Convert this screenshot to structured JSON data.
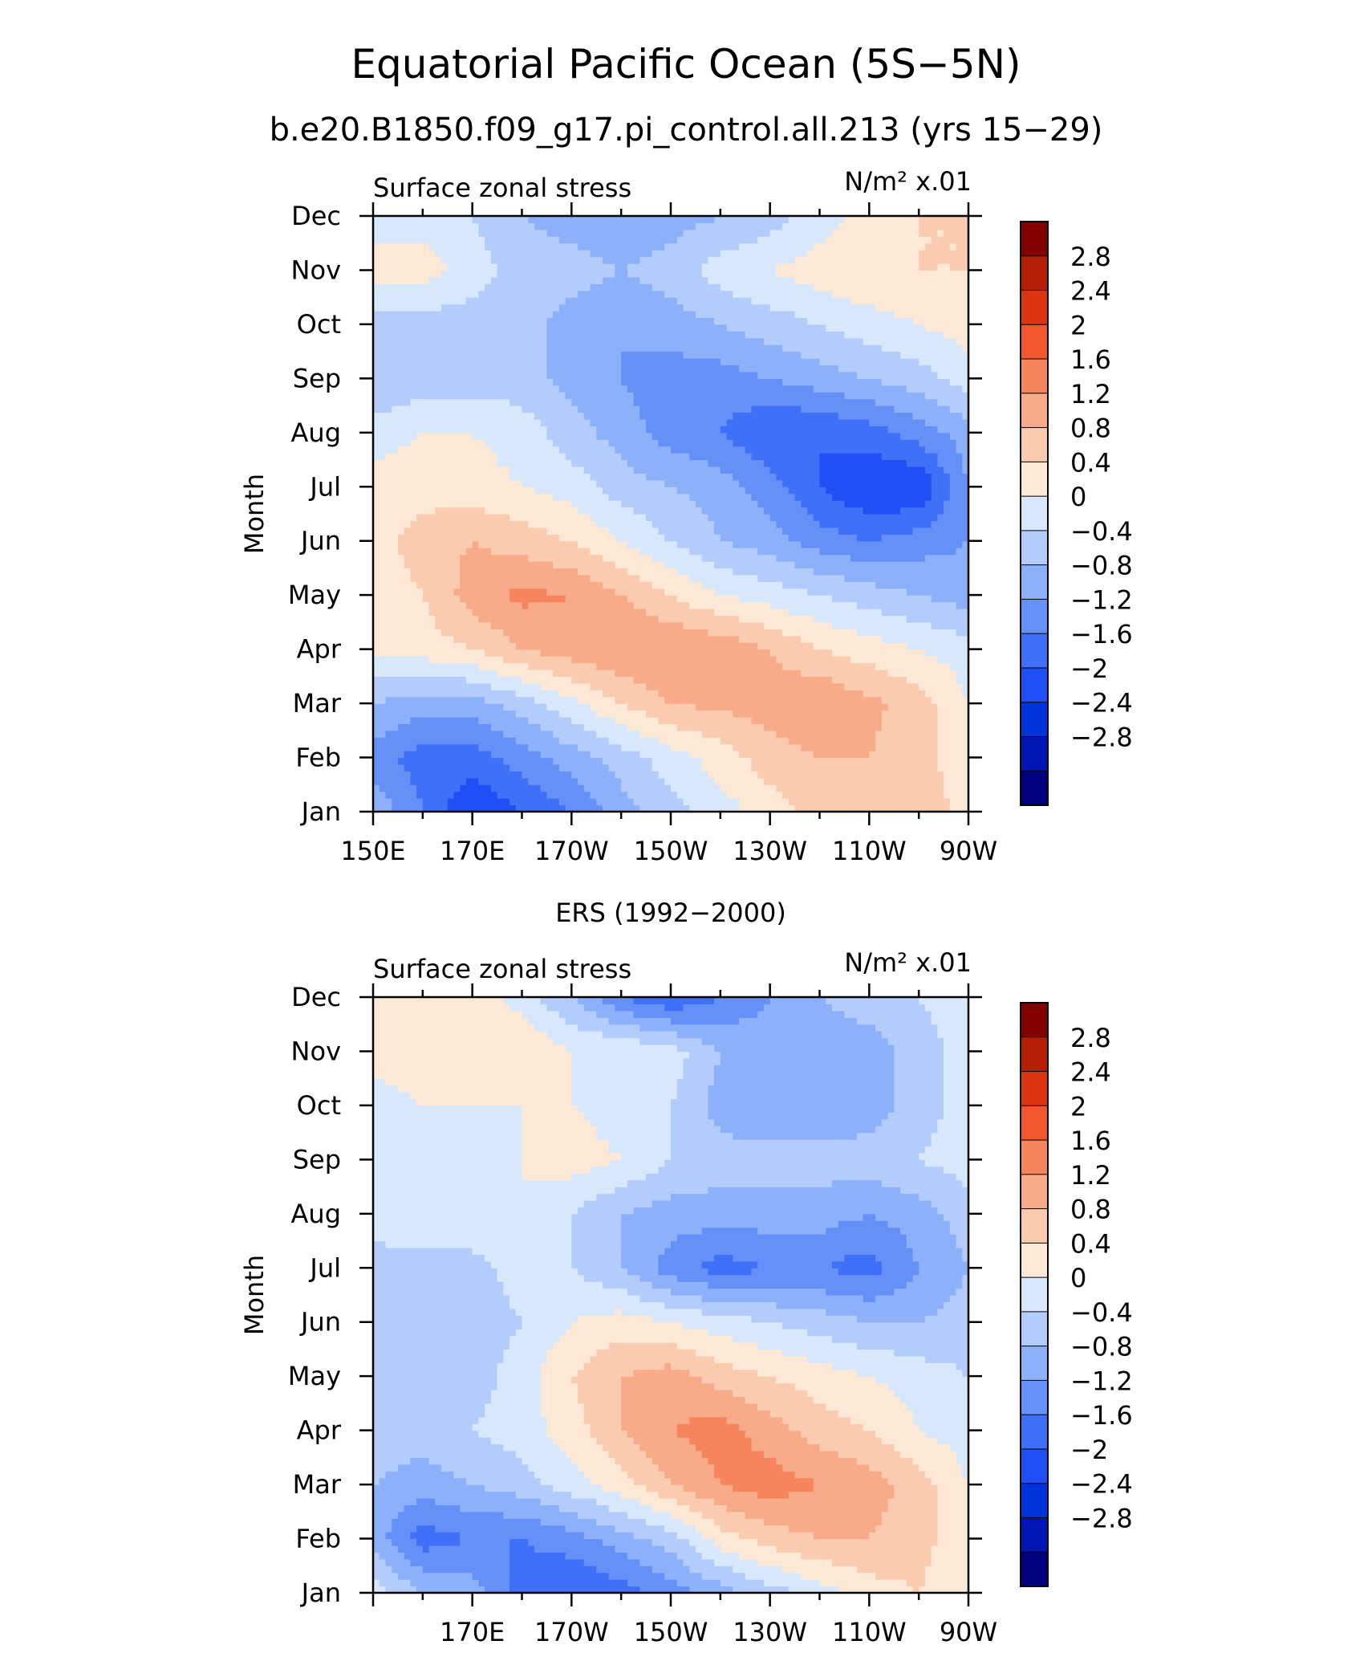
{
  "page": {
    "title": "Equatorial Pacific Ocean (5S−5N)",
    "subtitle": "b.e20.B1850.f09_g17.pi_control.all.213 (yrs 15−29)"
  },
  "chart_data": [
    {
      "type": "heatmap",
      "panel_title": "",
      "variable_label": "Surface zonal stress",
      "units_label": "N/m² x.01",
      "ylabel": "Month",
      "x_ticks": [
        "150E",
        "170E",
        "170W",
        "150W",
        "130W",
        "110W",
        "90W"
      ],
      "y_ticks": [
        "Jan",
        "Feb",
        "Mar",
        "Apr",
        "May",
        "Jun",
        "Jul",
        "Aug",
        "Sep",
        "Oct",
        "Nov",
        "Dec"
      ],
      "x": [
        150,
        160,
        170,
        180,
        190,
        200,
        210,
        220,
        230,
        240,
        250,
        260,
        270
      ],
      "y": [
        "Jan",
        "Feb",
        "Mar",
        "Apr",
        "May",
        "Jun",
        "Jul",
        "Aug",
        "Sep",
        "Oct",
        "Nov",
        "Dec"
      ],
      "z": [
        [
          -0.5,
          -1.2,
          -2.0,
          -1.6,
          -1.2,
          -0.6,
          -0.2,
          0.2,
          0.6,
          1.0,
          1.2,
          1.2,
          0.6
        ],
        [
          -1.0,
          -1.4,
          -1.4,
          -1.0,
          -0.6,
          -0.2,
          0.2,
          0.6,
          1.0,
          1.2,
          1.2,
          1.0,
          0.4
        ],
        [
          -0.4,
          -0.6,
          -0.6,
          -0.2,
          0.3,
          0.8,
          1.2,
          1.3,
          1.4,
          1.6,
          1.3,
          1.0,
          0.4
        ],
        [
          0.5,
          0.6,
          0.8,
          1.2,
          1.4,
          1.6,
          1.6,
          1.5,
          1.2,
          0.8,
          0.6,
          0.4,
          0.2
        ],
        [
          0.6,
          0.8,
          1.4,
          1.7,
          1.6,
          1.2,
          0.8,
          0.4,
          0.2,
          0.0,
          -0.2,
          -0.4,
          -0.6
        ],
        [
          0.6,
          1.0,
          1.2,
          1.0,
          0.8,
          0.4,
          0.0,
          -0.4,
          -0.6,
          -1.0,
          -1.2,
          -1.0,
          -0.8
        ],
        [
          0.6,
          0.6,
          0.6,
          0.4,
          0.2,
          -0.2,
          -0.4,
          -0.6,
          -1.0,
          -1.6,
          -2.0,
          -2.0,
          -0.8
        ],
        [
          0.2,
          0.4,
          0.4,
          0.2,
          -0.2,
          -0.6,
          -1.0,
          -1.2,
          -1.6,
          -1.6,
          -1.4,
          -1.0,
          -0.6
        ],
        [
          -0.4,
          -0.2,
          -0.2,
          -0.2,
          -0.6,
          -0.8,
          -1.0,
          -1.0,
          -0.8,
          -0.6,
          -0.4,
          -0.2,
          0.2
        ],
        [
          -0.2,
          -0.2,
          -0.2,
          -0.2,
          -0.6,
          -0.8,
          -0.6,
          -0.4,
          -0.2,
          0.0,
          0.2,
          0.4,
          0.6
        ],
        [
          0.6,
          0.6,
          0.2,
          -0.2,
          -0.2,
          -0.4,
          -0.2,
          0.2,
          0.4,
          0.6,
          0.8,
          0.8,
          0.8
        ],
        [
          0.2,
          0.2,
          0.0,
          -0.4,
          -0.6,
          -0.8,
          -0.6,
          -0.4,
          -0.2,
          0.2,
          0.6,
          0.8,
          0.8
        ]
      ],
      "levels": [
        -2.8,
        -2.4,
        -2.0,
        -1.6,
        -1.2,
        -0.8,
        -0.4,
        0,
        0.4,
        0.8,
        1.2,
        1.6,
        2.0,
        2.4,
        2.8
      ],
      "colorbar_labels": [
        "2.8",
        "2.4",
        "2",
        "1.6",
        "1.2",
        "0.8",
        "0.4",
        "0",
        "−0.4",
        "−0.8",
        "−1.2",
        "−1.6",
        "−2",
        "−2.4",
        "−2.8"
      ],
      "colors": [
        "#00007f",
        "#0016b4",
        "#0033d9",
        "#1f4ff5",
        "#3f70f7",
        "#6490f7",
        "#8cb0f9",
        "#b3ccfb",
        "#d7e8fd",
        "#fde8d6",
        "#fbcbb0",
        "#f8ab88",
        "#f6845c",
        "#f2572f",
        "#db3510",
        "#b21e06",
        "#830000"
      ]
    },
    {
      "type": "heatmap",
      "panel_title": "ERS (1992−2000)",
      "variable_label": "Surface zonal stress",
      "units_label": "N/m² x.01",
      "ylabel": "Month",
      "x_ticks": [
        "170E",
        "170W",
        "150W",
        "130W",
        "110W",
        "90W"
      ],
      "y_ticks": [
        "Jan",
        "Feb",
        "Mar",
        "Apr",
        "May",
        "Jun",
        "Jul",
        "Aug",
        "Sep",
        "Oct",
        "Nov",
        "Dec"
      ],
      "x": [
        150,
        160,
        170,
        180,
        190,
        200,
        210,
        220,
        230,
        240,
        250,
        260,
        270
      ],
      "y": [
        "Jan",
        "Feb",
        "Mar",
        "Apr",
        "May",
        "Jun",
        "Jul",
        "Aug",
        "Sep",
        "Oct",
        "Nov",
        "Dec"
      ],
      "z": [
        [
          0.2,
          -0.4,
          -0.6,
          -1.4,
          -1.6,
          -1.4,
          -1.0,
          -0.6,
          -0.2,
          0.2,
          0.6,
          0.8,
          0.4
        ],
        [
          -0.6,
          -1.4,
          -1.2,
          -1.2,
          -1.0,
          -0.6,
          -0.2,
          0.6,
          1.0,
          1.2,
          1.2,
          1.0,
          0.4
        ],
        [
          -0.4,
          -0.6,
          -0.4,
          -0.2,
          0.2,
          0.6,
          1.2,
          1.6,
          1.8,
          1.6,
          1.4,
          1.0,
          0.4
        ],
        [
          -0.2,
          -0.2,
          0.0,
          0.2,
          0.6,
          1.2,
          1.6,
          1.8,
          1.4,
          1.0,
          0.8,
          0.4,
          0.2
        ],
        [
          -0.2,
          -0.2,
          -0.2,
          0.2,
          0.8,
          1.2,
          1.4,
          1.0,
          0.8,
          0.6,
          0.4,
          0.2,
          0.0
        ],
        [
          -0.4,
          -0.2,
          -0.2,
          0.0,
          0.4,
          0.6,
          0.4,
          0.2,
          0.0,
          -0.2,
          -0.4,
          -0.4,
          -0.2
        ],
        [
          -0.2,
          -0.2,
          -0.2,
          0.2,
          0.0,
          -0.4,
          -1.0,
          -1.4,
          -1.2,
          -1.2,
          -1.4,
          -0.8,
          -0.4
        ],
        [
          0.2,
          0.4,
          0.4,
          0.4,
          0.0,
          -0.4,
          -0.6,
          -0.6,
          -0.6,
          -0.6,
          -0.8,
          -0.6,
          -0.2
        ],
        [
          0.2,
          0.4,
          0.2,
          0.4,
          0.6,
          0.4,
          0.0,
          -0.2,
          -0.2,
          -0.2,
          -0.2,
          0.0,
          0.2
        ],
        [
          0.2,
          0.4,
          0.4,
          0.4,
          0.4,
          0.2,
          0.0,
          -0.6,
          -0.8,
          -0.8,
          -0.6,
          -0.2,
          0.2
        ],
        [
          0.6,
          0.6,
          0.8,
          0.8,
          0.4,
          0.4,
          0.2,
          -0.4,
          -0.6,
          -0.6,
          -0.6,
          -0.2,
          0.2
        ],
        [
          0.4,
          0.6,
          0.6,
          0.2,
          -0.4,
          -1.2,
          -1.6,
          -1.2,
          -0.8,
          -0.4,
          -0.2,
          0.0,
          0.2
        ]
      ],
      "levels": [
        -2.8,
        -2.4,
        -2.0,
        -1.6,
        -1.2,
        -0.8,
        -0.4,
        0,
        0.4,
        0.8,
        1.2,
        1.6,
        2.0,
        2.4,
        2.8
      ],
      "colorbar_labels": [
        "2.8",
        "2.4",
        "2",
        "1.6",
        "1.2",
        "0.8",
        "0.4",
        "0",
        "−0.4",
        "−0.8",
        "−1.2",
        "−1.6",
        "−2",
        "−2.4",
        "−2.8"
      ],
      "colors": [
        "#00007f",
        "#0016b4",
        "#0033d9",
        "#1f4ff5",
        "#3f70f7",
        "#6490f7",
        "#8cb0f9",
        "#b3ccfb",
        "#d7e8fd",
        "#fde8d6",
        "#fbcbb0",
        "#f8ab88",
        "#f6845c",
        "#f2572f",
        "#db3510",
        "#b21e06",
        "#830000"
      ]
    }
  ]
}
